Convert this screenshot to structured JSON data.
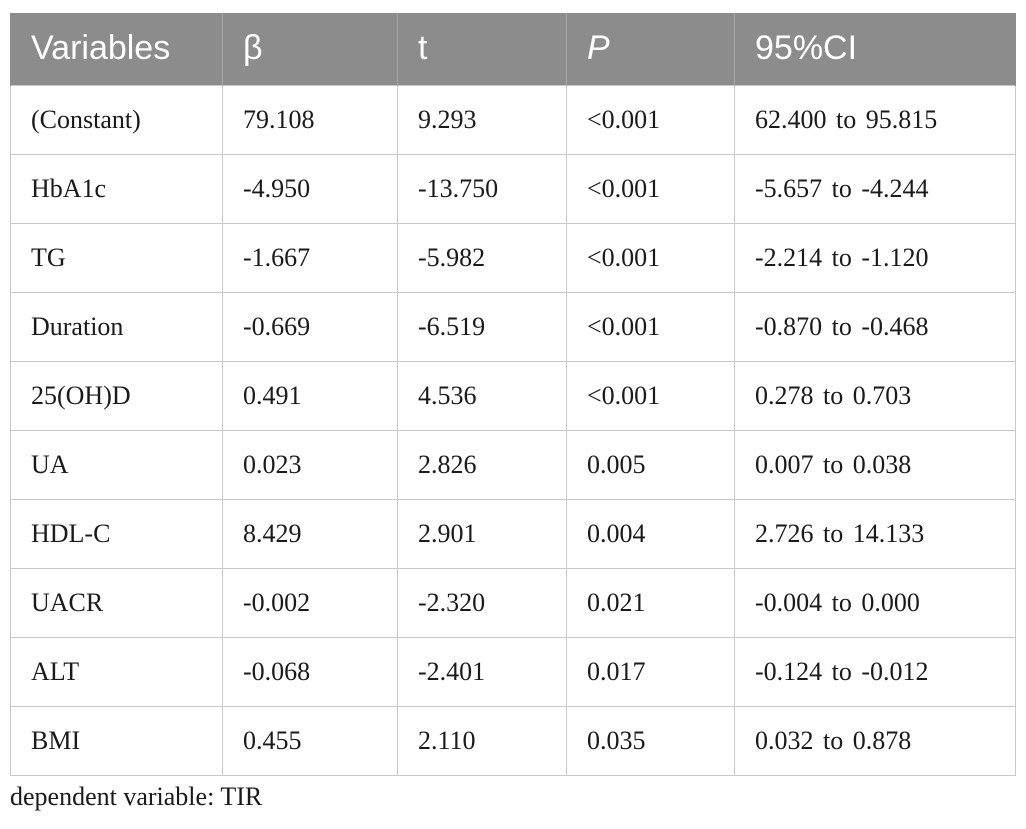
{
  "table": {
    "headers": [
      "Variables",
      "β",
      "t",
      "P",
      "95%CI"
    ],
    "rows": [
      [
        "(Constant)",
        "79.108",
        "9.293",
        "<0.001",
        "62.400 to 95.815"
      ],
      [
        "HbA1c",
        "-4.950",
        "-13.750",
        "<0.001",
        "-5.657 to -4.244"
      ],
      [
        "TG",
        "-1.667",
        "-5.982",
        "<0.001",
        "-2.214 to -1.120"
      ],
      [
        "Duration",
        "-0.669",
        "-6.519",
        "<0.001",
        "-0.870 to -0.468"
      ],
      [
        "25(OH)D",
        "0.491",
        "4.536",
        "<0.001",
        "0.278 to 0.703"
      ],
      [
        "UA",
        "0.023",
        "2.826",
        "0.005",
        "0.007 to 0.038"
      ],
      [
        "HDL-C",
        "8.429",
        "2.901",
        "0.004",
        "2.726 to 14.133"
      ],
      [
        "UACR",
        "-0.002",
        "-2.320",
        "0.021",
        "-0.004 to 0.000"
      ],
      [
        "ALT",
        "-0.068",
        "-2.401",
        "0.017",
        "-0.124 to -0.012"
      ],
      [
        "BMI",
        "0.455",
        "2.110",
        "0.035",
        "0.032 to 0.878"
      ]
    ]
  },
  "footnote": "dependent variable: TIR",
  "colors": {
    "header_bg": "#8c8c8c",
    "header_text": "#ffffff",
    "grid": "#c8c8c8"
  }
}
